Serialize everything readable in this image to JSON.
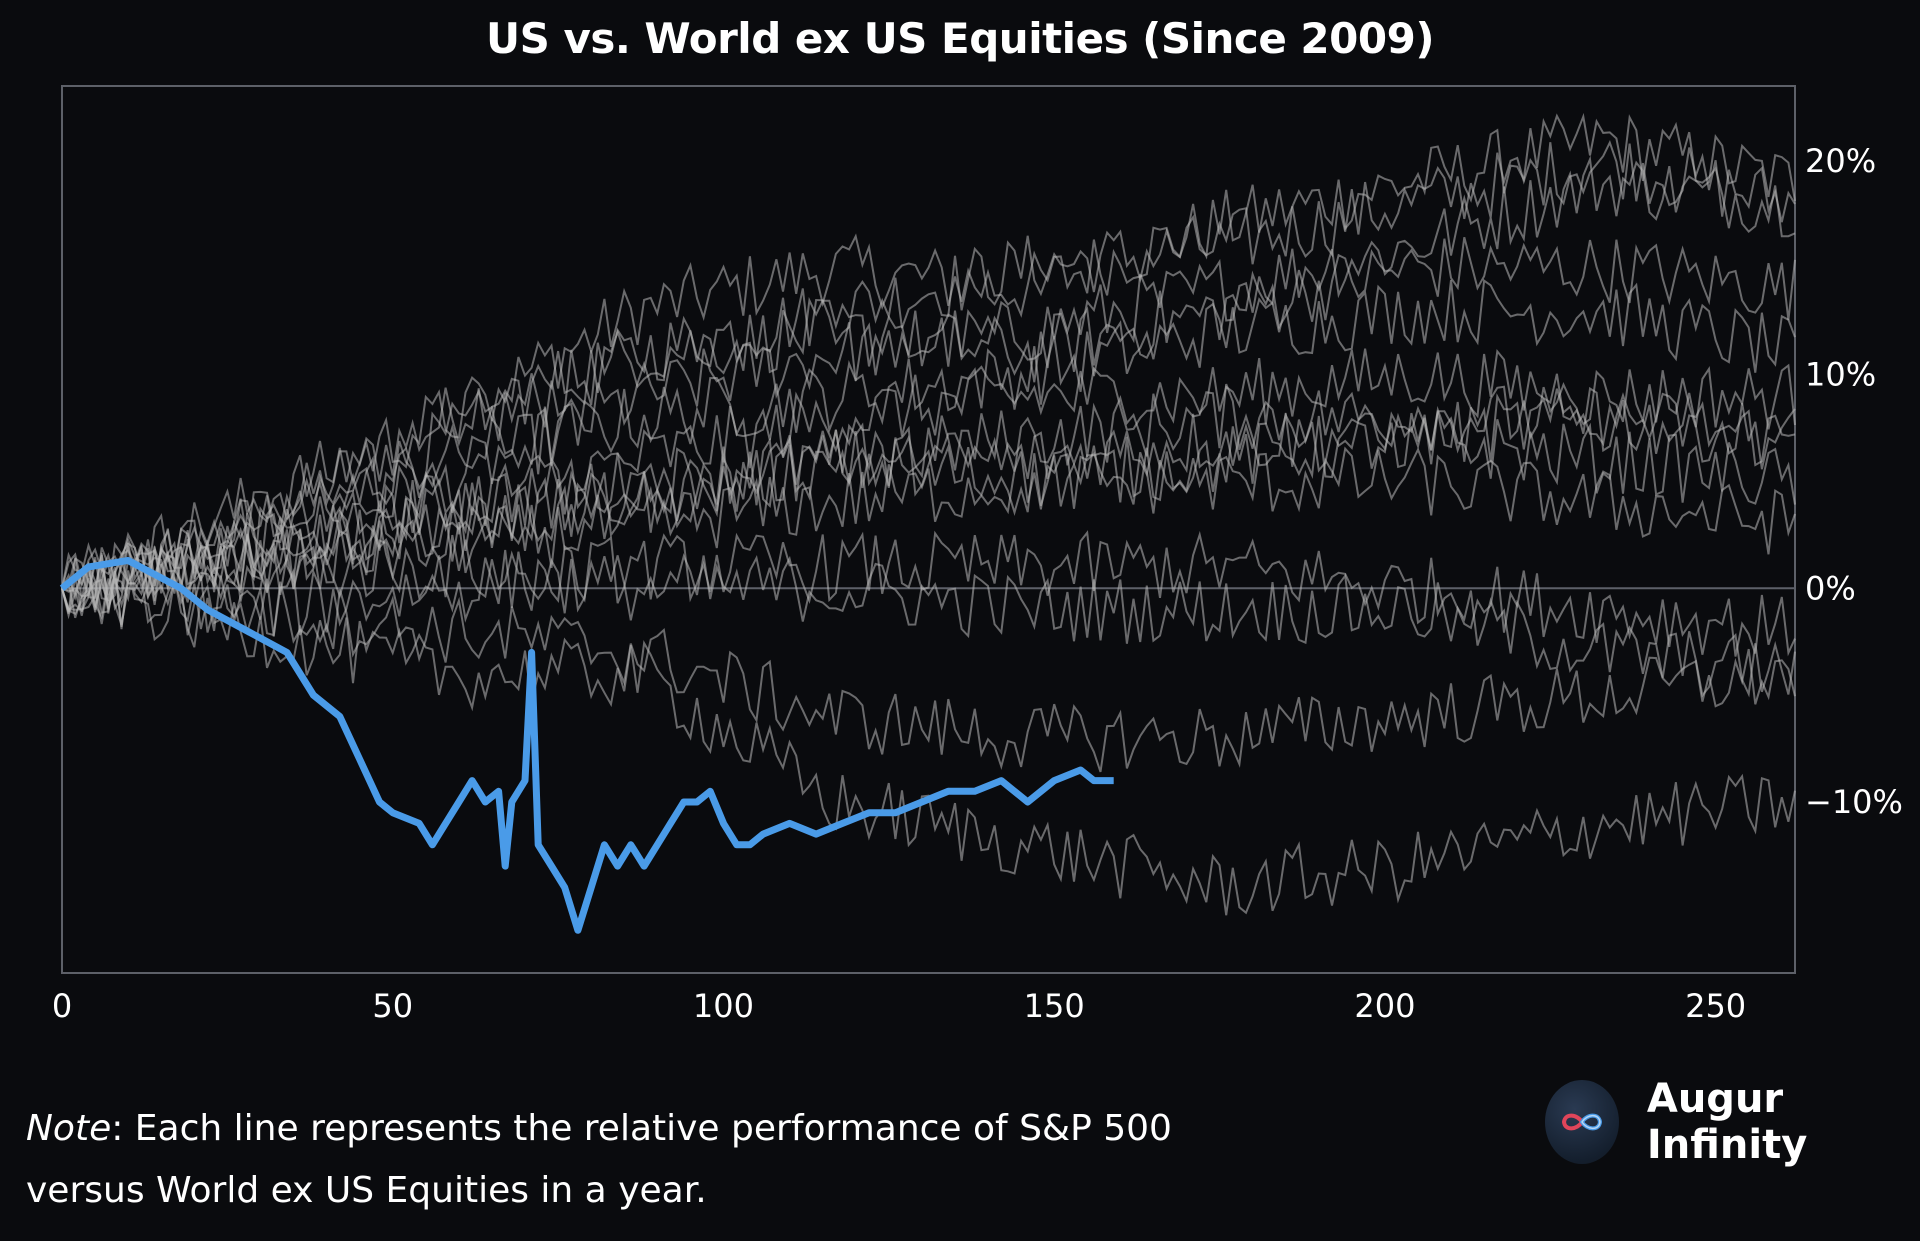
{
  "chart_data": {
    "type": "line",
    "title": "US vs. World ex US Equities (Since 2009)",
    "xlabel": "",
    "ylabel": "",
    "xlim": [
      0,
      262
    ],
    "ylim": [
      -18,
      23.5
    ],
    "x_ticks": [
      0,
      50,
      100,
      150,
      200,
      250
    ],
    "x_tick_labels": [
      "0",
      "50",
      "100",
      "150",
      "200",
      "250"
    ],
    "y_ticks": [
      20,
      10,
      0,
      -10
    ],
    "y_tick_labels": [
      "20%",
      "10%",
      "0%",
      "−10%"
    ],
    "y_axis_side": "right",
    "zero_line": true,
    "grid": false,
    "legend": "none",
    "series_note": "One line per year since 2009; the current year is highlighted in blue. Historical years are shown as thin gray lines.",
    "history_series": [
      {
        "name": "year-01",
        "values": [
          0,
          3,
          8,
          13,
          15,
          14,
          17,
          19,
          21,
          19
        ]
      },
      {
        "name": "year-02",
        "values": [
          0,
          2,
          7,
          11,
          13,
          15,
          16,
          18,
          20,
          18
        ]
      },
      {
        "name": "year-03",
        "values": [
          0,
          2,
          5,
          9,
          11,
          12,
          14,
          16,
          19,
          18
        ]
      },
      {
        "name": "year-04",
        "values": [
          0,
          4,
          8,
          11,
          12,
          11,
          13,
          15,
          15,
          14
        ]
      },
      {
        "name": "year-05",
        "values": [
          0,
          3,
          6,
          8,
          9,
          10,
          12,
          13,
          13,
          11
        ]
      },
      {
        "name": "year-06",
        "values": [
          0,
          1,
          4,
          6,
          8,
          9,
          9,
          10,
          9,
          9
        ]
      },
      {
        "name": "year-07",
        "values": [
          0,
          2,
          4,
          5,
          6,
          7,
          8,
          8,
          8,
          7
        ]
      },
      {
        "name": "year-08",
        "values": [
          0,
          1,
          3,
          4,
          6,
          6,
          7,
          7,
          8,
          7
        ]
      },
      {
        "name": "year-09",
        "values": [
          0,
          2,
          3,
          4,
          6,
          5,
          6,
          7,
          6,
          5
        ]
      },
      {
        "name": "year-10",
        "values": [
          0,
          1,
          2,
          3,
          4,
          5,
          5,
          5,
          4,
          3
        ]
      },
      {
        "name": "year-11",
        "values": [
          0,
          -1,
          0,
          1,
          1,
          1,
          1,
          0,
          -1,
          -2
        ]
      },
      {
        "name": "year-12",
        "values": [
          0,
          1,
          1,
          0,
          0,
          -1,
          -1,
          -1,
          -3,
          -4
        ]
      },
      {
        "name": "year-13",
        "values": [
          0,
          -1,
          -2,
          -3,
          -6,
          -7,
          -7,
          -6,
          -5,
          -4
        ]
      },
      {
        "name": "year-14",
        "values": [
          0,
          -2,
          -4,
          -4,
          -10,
          -12,
          -14,
          -13,
          -11,
          -10
        ]
      }
    ],
    "current_series": {
      "name": "current-year",
      "color": "#4a9be8",
      "x": [
        0,
        4,
        10,
        18,
        22,
        28,
        34,
        38,
        42,
        45,
        48,
        50,
        54,
        56,
        58,
        60,
        62,
        64,
        66,
        67,
        68,
        70,
        71,
        72,
        74,
        76,
        78,
        80,
        82,
        84,
        86,
        88,
        90,
        92,
        94,
        96,
        98,
        100,
        102,
        104,
        106,
        110,
        114,
        118,
        122,
        126,
        130,
        134,
        138,
        142,
        146,
        150,
        154,
        156,
        159
      ],
      "values": [
        0,
        1,
        1.3,
        0,
        -1,
        -2,
        -3,
        -5,
        -6,
        -8,
        -10,
        -10.5,
        -11,
        -12,
        -11,
        -10,
        -9,
        -10,
        -9.5,
        -13,
        -10,
        -9,
        -3,
        -12,
        -13,
        -14,
        -16,
        -14,
        -12,
        -13,
        -12,
        -13,
        -12,
        -11,
        -10,
        -10,
        -9.5,
        -11,
        -12,
        -12,
        -11.5,
        -11,
        -11.5,
        -11,
        -10.5,
        -10.5,
        -10,
        -9.5,
        -9.5,
        -9,
        -10,
        -9,
        -8.5,
        -9,
        -9
      ]
    }
  },
  "note": {
    "label": "Note",
    "text": ": Each line represents the relative performance of S&P 500 versus World ex US Equities in a year."
  },
  "brand": {
    "name": "Augur Infinity",
    "accent_red": "#e0455a",
    "accent_blue": "#4a9be8"
  },
  "colors": {
    "background": "#0a0b0e",
    "axis": "#5d6068",
    "history_line": "#b9b9b9",
    "current_line": "#4a9be8"
  }
}
